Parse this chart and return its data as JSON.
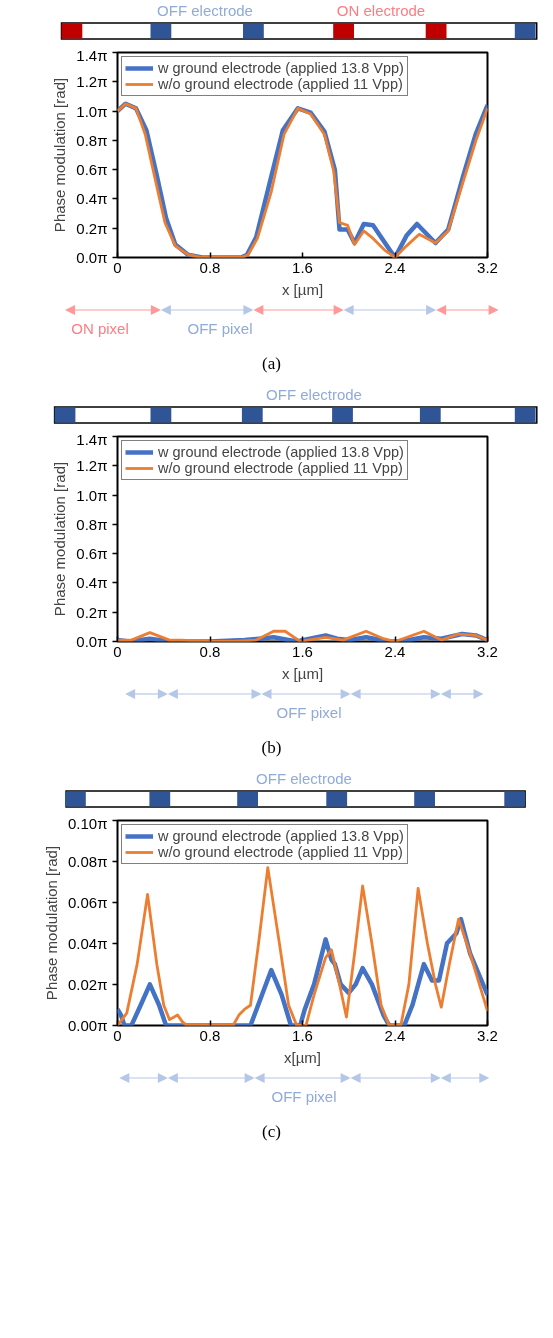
{
  "chart_data": [
    {
      "type": "line",
      "xlabel": "x [µm]",
      "ylabel": "Phase modulation [rad]",
      "xlim": [
        0,
        3.2
      ],
      "xticks": [
        0,
        0.8,
        1.6,
        2.4,
        3.2
      ],
      "ylim": [
        0,
        4.3982
      ],
      "yticks": [
        {
          "value": 0,
          "label": "0.0π"
        },
        {
          "value": 0.6283,
          "label": "0.2π"
        },
        {
          "value": 1.2566,
          "label": "0.4π"
        },
        {
          "value": 1.885,
          "label": "0.6π"
        },
        {
          "value": 2.5133,
          "label": "0.8π"
        },
        {
          "value": 3.1416,
          "label": "1.0π"
        },
        {
          "value": 3.7699,
          "label": "1.2π"
        },
        {
          "value": 4.3982,
          "label": "1.4π"
        }
      ],
      "legend": "top left",
      "grid": false,
      "annotations": [
        "OFF electrode",
        "ON electrode",
        "ON pixel",
        "OFF pixel",
        "(a)"
      ],
      "series": [
        {
          "name": "w ground electrode (applied 13.8 Vpp)",
          "color": "#4472c4",
          "x": [
            0,
            0.07,
            0.16,
            0.25,
            0.34,
            0.42,
            0.5,
            0.61,
            0.73,
            1.07,
            1.12,
            1.2,
            1.31,
            1.43,
            1.56,
            1.67,
            1.79,
            1.88,
            1.92,
            1.99,
            2.05,
            2.13,
            2.21,
            2.33,
            2.4,
            2.5,
            2.59,
            2.75,
            2.86,
            2.99,
            3.1,
            3.2
          ],
          "values": [
            3.14,
            3.3,
            3.2,
            2.73,
            1.76,
            0.85,
            0.28,
            0.06,
            0,
            0,
            0.06,
            0.44,
            1.54,
            2.73,
            3.2,
            3.11,
            2.7,
            1.88,
            0.6,
            0.6,
            0.31,
            0.72,
            0.69,
            0.25,
            0,
            0.47,
            0.72,
            0.31,
            0.6,
            1.75,
            2.66,
            3.27
          ]
        },
        {
          "name": "w/o ground electrode (applied 11 Vpp)",
          "color": "#ed7d31",
          "x": [
            0,
            0.07,
            0.16,
            0.24,
            0.33,
            0.41,
            0.5,
            0.61,
            0.73,
            1.07,
            1.13,
            1.21,
            1.33,
            1.44,
            1.56,
            1.67,
            1.79,
            1.87,
            1.92,
            1.99,
            2.05,
            2.13,
            2.21,
            2.31,
            2.4,
            2.5,
            2.61,
            2.75,
            2.86,
            2.99,
            3.1,
            3.2
          ],
          "values": [
            3.14,
            3.3,
            3.2,
            2.64,
            1.63,
            0.75,
            0.25,
            0.06,
            0,
            0,
            0.06,
            0.41,
            1.41,
            2.64,
            3.2,
            3.08,
            2.64,
            1.85,
            0.75,
            0.69,
            0.28,
            0.57,
            0.41,
            0.16,
            0,
            0.25,
            0.5,
            0.31,
            0.57,
            1.63,
            2.51,
            3.2
          ]
        }
      ]
    },
    {
      "type": "line",
      "xlabel": "x [µm]",
      "ylabel": "Phase modulation [rad]",
      "xlim": [
        0,
        3.2
      ],
      "xticks": [
        0,
        0.8,
        1.6,
        2.4,
        3.2
      ],
      "ylim": [
        0,
        4.3982
      ],
      "yticks": [
        {
          "value": 0,
          "label": "0.0π"
        },
        {
          "value": 0.6283,
          "label": "0.2π"
        },
        {
          "value": 1.2566,
          "label": "0.4π"
        },
        {
          "value": 1.885,
          "label": "0.6π"
        },
        {
          "value": 2.5133,
          "label": "0.8π"
        },
        {
          "value": 3.1416,
          "label": "1.0π"
        },
        {
          "value": 3.7699,
          "label": "1.2π"
        },
        {
          "value": 4.3982,
          "label": "1.4π"
        }
      ],
      "legend": "top left",
      "grid": false,
      "annotations": [
        "OFF electrode",
        "OFF pixel",
        "(b)"
      ],
      "series": [
        {
          "name": "w ground electrode (applied 13.8 Vpp)",
          "color": "#4472c4",
          "x": [
            0,
            0.1,
            0.28,
            0.45,
            0.55,
            0.8,
            1.1,
            1.35,
            1.55,
            1.6,
            1.8,
            1.9,
            2.0,
            2.15,
            2.35,
            2.45,
            2.65,
            2.8,
            2.98,
            3.1,
            3.2
          ],
          "values": [
            0.03,
            0,
            0.06,
            0,
            0,
            0,
            0.03,
            0.09,
            0,
            0.03,
            0.13,
            0.06,
            0.03,
            0.09,
            0,
            0,
            0.09,
            0.06,
            0.16,
            0.13,
            0.03
          ]
        },
        {
          "name": "w/o ground electrode (applied 11 Vpp)",
          "color": "#ed7d31",
          "x": [
            0,
            0.12,
            0.28,
            0.45,
            0.55,
            0.8,
            1.0,
            1.2,
            1.35,
            1.45,
            1.58,
            1.8,
            1.95,
            2.15,
            2.3,
            2.4,
            2.65,
            2.8,
            2.95,
            3.1,
            3.2
          ],
          "values": [
            0.03,
            0.03,
            0.19,
            0.03,
            0.03,
            0,
            0,
            0.03,
            0.22,
            0.22,
            0,
            0.09,
            0.03,
            0.22,
            0.06,
            0,
            0.22,
            0.03,
            0.16,
            0.13,
            0.03
          ]
        }
      ]
    },
    {
      "type": "line",
      "xlabel": "x[µm]",
      "ylabel": "Phase modulation [rad]",
      "xlim": [
        0,
        3.2
      ],
      "xticks": [
        0,
        0.8,
        1.6,
        2.4,
        3.2
      ],
      "ylim": [
        0,
        0.31416
      ],
      "yticks": [
        {
          "value": 0,
          "label": "0.00π"
        },
        {
          "value": 0.06283,
          "label": "0.02π"
        },
        {
          "value": 0.12566,
          "label": "0.04π"
        },
        {
          "value": 0.1885,
          "label": "0.06π"
        },
        {
          "value": 0.25133,
          "label": "0.08π"
        },
        {
          "value": 0.31416,
          "label": "0.10π"
        }
      ],
      "legend": "top left",
      "grid": false,
      "annotations": [
        "OFF electrode",
        "OFF pixel",
        "(c)"
      ],
      "series": [
        {
          "name": "w ground electrode (applied 13.8 Vpp)",
          "color": "#4472c4",
          "x": [
            0,
            0.03,
            0.06,
            0.12,
            0.2,
            0.28,
            0.36,
            0.42,
            1.0,
            1.15,
            1.25,
            1.33,
            1.42,
            1.5,
            1.58,
            1.62,
            1.7,
            1.8,
            1.85,
            1.88,
            1.93,
            2.0,
            2.06,
            2.12,
            2.2,
            2.3,
            2.35,
            2.48,
            2.55,
            2.65,
            2.72,
            2.78,
            2.85,
            2.93,
            2.97,
            3.05,
            3.2
          ],
          "values": [
            0.025,
            0.016,
            0,
            0,
            0.031,
            0.063,
            0.031,
            0,
            0,
            0,
            0.047,
            0.085,
            0.047,
            0,
            0,
            0.025,
            0.063,
            0.132,
            0.101,
            0.094,
            0.063,
            0.05,
            0.063,
            0.088,
            0.063,
            0.016,
            0,
            0,
            0.031,
            0.094,
            0.069,
            0.069,
            0.126,
            0.141,
            0.163,
            0.11,
            0.047
          ]
        },
        {
          "name": "w/o ground electrode (applied 11 Vpp)",
          "color": "#ed7d31",
          "x": [
            0,
            0.08,
            0.17,
            0.26,
            0.34,
            0.4,
            0.45,
            0.52,
            0.56,
            0.6,
            1.0,
            1.05,
            1.1,
            1.15,
            1.22,
            1.3,
            1.4,
            1.48,
            1.55,
            1.63,
            1.7,
            1.8,
            1.85,
            1.92,
            1.98,
            2.05,
            2.12,
            2.2,
            2.28,
            2.35,
            2.45,
            2.52,
            2.6,
            2.68,
            2.75,
            2.8,
            2.87,
            2.95,
            3.05,
            3.2
          ],
          "values": [
            0,
            0.019,
            0.094,
            0.201,
            0.094,
            0.031,
            0.009,
            0.016,
            0.006,
            0,
            0,
            0.016,
            0.025,
            0.031,
            0.126,
            0.242,
            0.126,
            0.031,
            0,
            0,
            0.047,
            0.104,
            0.116,
            0.063,
            0.013,
            0.11,
            0.214,
            0.126,
            0.031,
            0,
            0,
            0.063,
            0.21,
            0.126,
            0.063,
            0.028,
            0.094,
            0.163,
            0.11,
            0.022
          ]
        }
      ]
    }
  ]
}
